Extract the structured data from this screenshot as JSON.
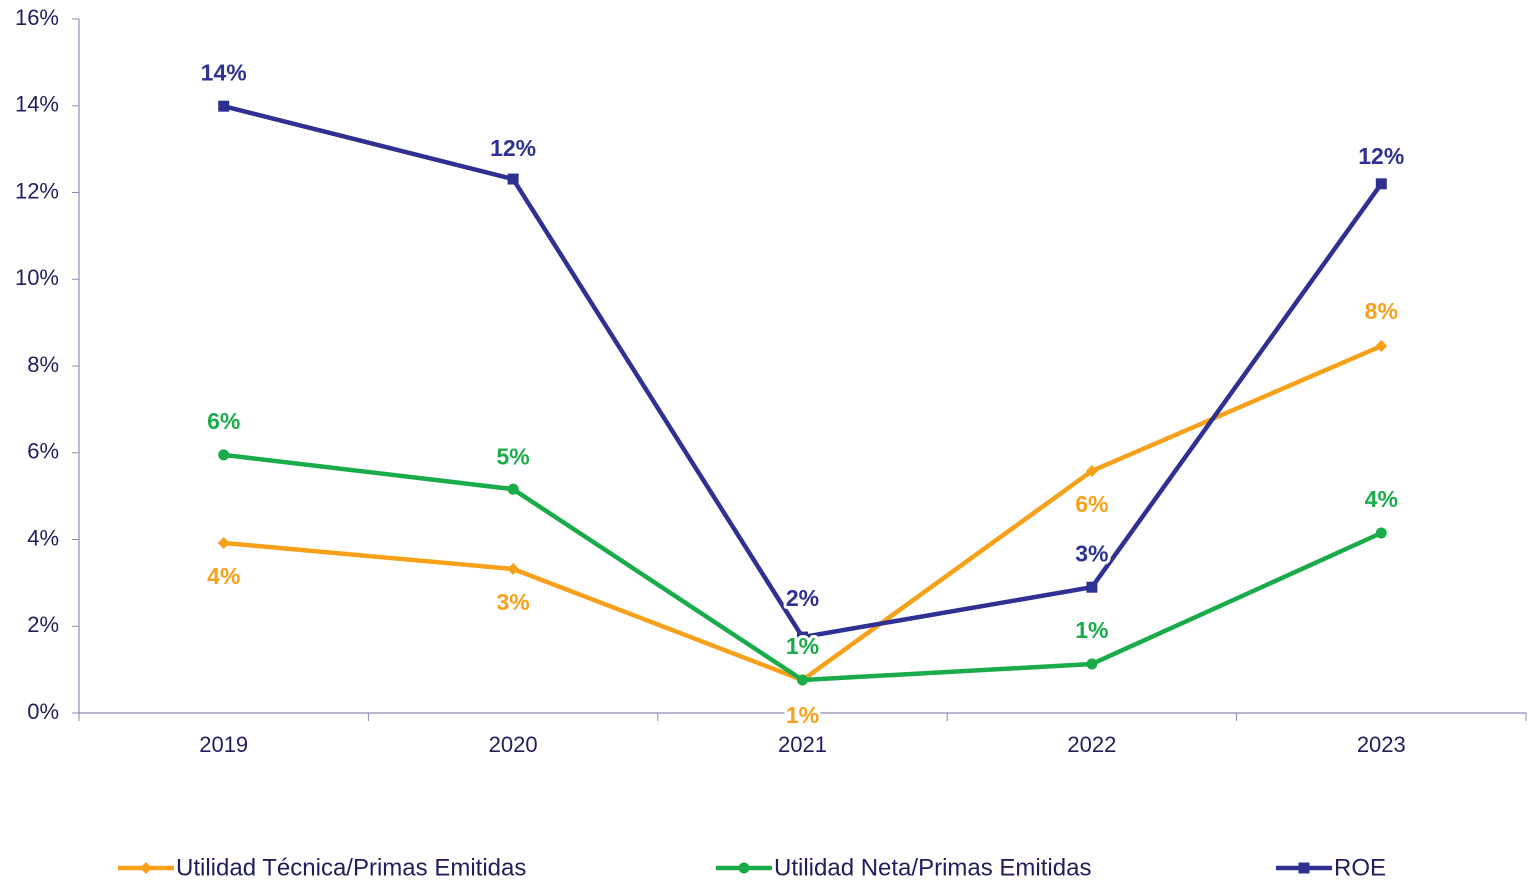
{
  "chart_data": {
    "type": "line",
    "categories": [
      "2019",
      "2020",
      "2021",
      "2022",
      "2023"
    ],
    "series": [
      {
        "name": "Utilidad Técnica/Primas Emitidas",
        "color": "#f7a11a",
        "marker": "diamond",
        "values": [
          3.92,
          3.32,
          0.76,
          5.58,
          8.46
        ],
        "value_labels": [
          "4%",
          "3%",
          "1%",
          "6%",
          "8%"
        ]
      },
      {
        "name": "Utilidad Neta/Primas Emitidas",
        "color": "#1aab4b",
        "marker": "circle",
        "values": [
          5.95,
          5.16,
          0.76,
          1.13,
          4.15
        ],
        "value_labels": [
          "6%",
          "5%",
          "1%",
          "1%",
          "4%"
        ]
      },
      {
        "name": "ROE",
        "color": "#2e3192",
        "marker": "square",
        "values": [
          13.99,
          12.31,
          1.75,
          2.9,
          12.2
        ],
        "value_labels": [
          "14%",
          "12%",
          "2%",
          "3%",
          "12%"
        ]
      }
    ],
    "ylim": [
      0,
      16
    ],
    "yticks": [
      {
        "value": 0,
        "label": "0%"
      },
      {
        "value": 2,
        "label": "2%"
      },
      {
        "value": 4,
        "label": "4%"
      },
      {
        "value": 6,
        "label": "6%"
      },
      {
        "value": 8,
        "label": "8%"
      },
      {
        "value": 10,
        "label": "10%"
      },
      {
        "value": 12,
        "label": "12%"
      },
      {
        "value": 14,
        "label": "14%"
      },
      {
        "value": 16,
        "label": "16%"
      }
    ],
    "legend": "bottom"
  }
}
